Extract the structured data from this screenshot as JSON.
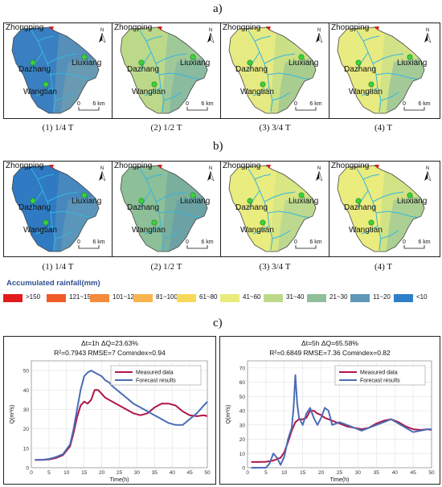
{
  "sections": {
    "a": "a)",
    "b": "b)",
    "c": "c)"
  },
  "map": {
    "location_labels": {
      "zhongping": "Zhongping",
      "dazhang": "Dazhang",
      "liuxiang": "Liuxiang",
      "wangtian": "Wangtian"
    },
    "north": "N",
    "scale": {
      "zero": "0",
      "distance": "6 km"
    }
  },
  "row_a": {
    "captions": [
      "(1) 1/4 T",
      "(2) 1/2 T",
      "(3) 3/4 T",
      "(4) T"
    ],
    "fill_colors": [
      [
        "#3a7fc1",
        "#5a91b8",
        "#6d9bb0"
      ],
      [
        "#bcd98a",
        "#9cc79a",
        "#86b8a0"
      ],
      [
        "#e6ea82",
        "#c8df86",
        "#a2c990"
      ],
      [
        "#e8eb80",
        "#cfe187",
        "#9cc59b"
      ]
    ]
  },
  "row_b": {
    "captions": [
      "(1) 1/4 T",
      "(2) 1/2 T",
      "(3) 3/4 T",
      "(4) T"
    ],
    "fill_colors": [
      [
        "#2f7ac2",
        "#4a89be",
        "#5f98b8"
      ],
      [
        "#8dbf98",
        "#78ad9e",
        "#6ba0a6"
      ],
      [
        "#e9ec7f",
        "#d6e585",
        "#b8d690"
      ],
      [
        "#eaec7e",
        "#cde185",
        "#a6cd95"
      ]
    ]
  },
  "legend": {
    "title": "Accumulated rainfall(mm)",
    "items": [
      {
        "label": ">150",
        "color": "#e31a1c"
      },
      {
        "label": "121~150",
        "color": "#f05a28"
      },
      {
        "label": "101~120",
        "color": "#f58a3c"
      },
      {
        "label": "81~100",
        "color": "#f8b44f"
      },
      {
        "label": "61~80",
        "color": "#f7d95a"
      },
      {
        "label": "41~60",
        "color": "#e9ec7d"
      },
      {
        "label": "31~40",
        "color": "#bcd98a"
      },
      {
        "label": "21~30",
        "color": "#8fbf9a"
      },
      {
        "label": "11~20",
        "color": "#5f98b8"
      },
      {
        "label": "<10",
        "color": "#2f7fc8"
      }
    ]
  },
  "chart_data": [
    {
      "type": "line",
      "title_line1": "Δt=1h  ΔQ=23.63%",
      "title_line2": "R²=0.7943  RMSE=7  Comindex=0.94",
      "xlabel": "Time(h)",
      "ylabel": "Q(m³/s)",
      "xlim": [
        0,
        50
      ],
      "ylim": [
        0,
        55
      ],
      "xticks": [
        0,
        5,
        10,
        15,
        20,
        25,
        30,
        35,
        40,
        45,
        50
      ],
      "yticks": [
        0,
        10,
        20,
        30,
        40,
        50
      ],
      "grid": true,
      "legend_position": "top-right",
      "series": [
        {
          "name": "Measured data",
          "color": "#b0154a",
          "x": [
            1,
            3,
            5,
            7,
            9,
            11,
            12,
            13,
            14,
            15,
            16,
            17,
            18,
            19,
            20,
            21,
            22,
            23,
            25,
            27,
            29,
            31,
            33,
            35,
            37,
            39,
            41,
            43,
            45,
            47,
            49,
            50
          ],
          "y": [
            4,
            4,
            4.2,
            5,
            6.5,
            11,
            18,
            26,
            32,
            34,
            33,
            35,
            40,
            40,
            38,
            36,
            35,
            34,
            32,
            30,
            28,
            27,
            28,
            31,
            33,
            33,
            32,
            29,
            27,
            26.5,
            27,
            26.5
          ]
        },
        {
          "name": "Forecast results",
          "color": "#4a6db5",
          "x": [
            1,
            3,
            5,
            7,
            9,
            11,
            12,
            13,
            14,
            15,
            16,
            17,
            18,
            19,
            20,
            21,
            22,
            23,
            25,
            27,
            29,
            31,
            33,
            35,
            37,
            39,
            41,
            43,
            45,
            47,
            49,
            50
          ],
          "y": [
            4,
            4,
            4.5,
            5.5,
            7,
            12,
            20,
            30,
            40,
            47,
            49,
            50,
            49,
            48,
            47,
            45,
            44,
            42,
            39,
            36,
            33,
            31,
            29,
            27,
            25,
            23,
            22,
            22,
            25,
            28,
            32,
            34
          ]
        }
      ]
    },
    {
      "type": "line",
      "title_line1": "Δt=5h  ΔQ=65.58%",
      "title_line2": "R²=0.6849  RMSE=7.36  Comindex=0.82",
      "xlabel": "Time(h)",
      "ylabel": "Q(m³/s)",
      "xlim": [
        0,
        50
      ],
      "ylim": [
        0,
        75
      ],
      "xticks": [
        0,
        5,
        10,
        15,
        20,
        25,
        30,
        35,
        40,
        45,
        50
      ],
      "yticks": [
        0,
        10,
        20,
        30,
        40,
        50,
        60,
        70
      ],
      "grid": true,
      "legend_position": "top-right",
      "series": [
        {
          "name": "Measured data",
          "color": "#b0154a",
          "x": [
            1,
            3,
            5,
            7,
            9,
            10,
            11,
            12,
            13,
            14,
            15,
            16,
            17,
            18,
            19,
            20,
            21,
            22,
            23,
            25,
            27,
            29,
            31,
            33,
            35,
            37,
            39,
            41,
            43,
            45,
            47,
            49,
            50
          ],
          "y": [
            4,
            4,
            4.2,
            5,
            7,
            11,
            18,
            26,
            32,
            34,
            34,
            35,
            40,
            40,
            38,
            37,
            35,
            34,
            33,
            31,
            29,
            28,
            27,
            28,
            31,
            33,
            34,
            32,
            29,
            27,
            26.5,
            27,
            26.5
          ]
        },
        {
          "name": "Forecast results",
          "color": "#4a6db5",
          "x": [
            1,
            3,
            5,
            6,
            7,
            8,
            9,
            10,
            11,
            12,
            12.5,
            13,
            13.5,
            14,
            15,
            16,
            17,
            18,
            19,
            20,
            21,
            22,
            23,
            25,
            27,
            29,
            31,
            33,
            35,
            37,
            39,
            41,
            43,
            45,
            47,
            49,
            50
          ],
          "y": [
            0,
            0,
            0,
            3,
            10,
            7,
            2,
            8,
            20,
            28,
            42,
            65,
            45,
            35,
            30,
            38,
            42,
            35,
            30,
            35,
            42,
            40,
            30,
            32,
            30,
            28,
            26,
            28,
            30,
            32,
            34,
            31,
            28,
            25,
            26,
            27,
            27
          ]
        }
      ]
    }
  ]
}
